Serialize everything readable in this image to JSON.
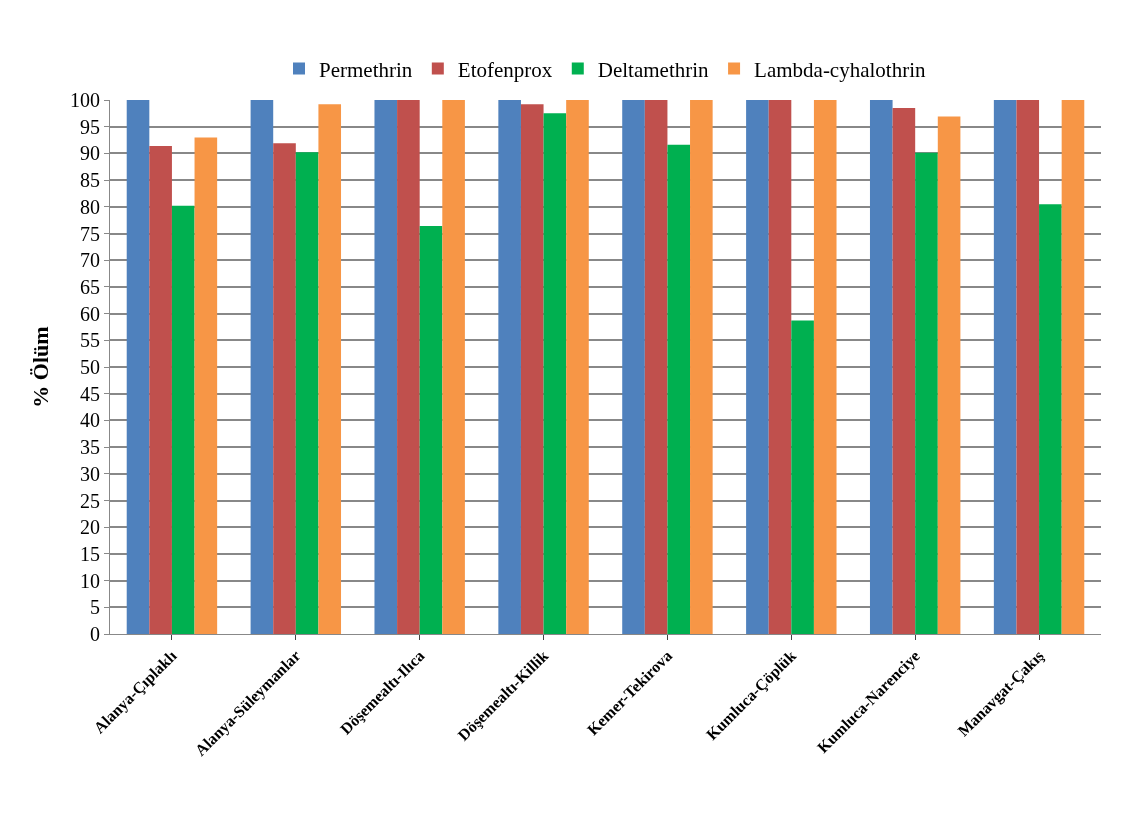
{
  "chart_data": {
    "type": "bar",
    "ylabel": "% Ölüm",
    "categories": [
      "Alanya-Çıplaklı",
      "Alanya-Süleymanlar",
      "Döşemealtı-Ilıca",
      "Döşemealtı-Killik",
      "Kemer-Tekirova",
      "Kumluca-Çöplük",
      "Kumluca-Narenciye",
      "Manavgat-Çakış"
    ],
    "series": [
      {
        "name": "Permethrin",
        "color": "#4f81bd",
        "values": [
          100,
          100,
          100,
          100,
          100,
          100,
          100,
          100
        ]
      },
      {
        "name": "Etofenprox",
        "color": "#c0504d",
        "values": [
          91.4,
          91.9,
          100,
          99.2,
          100,
          100,
          98.5,
          100
        ]
      },
      {
        "name": "Deltamethrin",
        "color": "#00b050",
        "values": [
          80.2,
          90.2,
          76.4,
          97.5,
          91.6,
          58.7,
          90.1,
          80.5
        ]
      },
      {
        "name": "Lambda-cyhalothrin",
        "color": "#f79646",
        "values": [
          93.0,
          99.2,
          100,
          100,
          100,
          100,
          96.9,
          100
        ]
      }
    ],
    "ylim": [
      0,
      100
    ],
    "yticks": [
      0,
      5,
      10,
      15,
      20,
      25,
      30,
      35,
      40,
      45,
      50,
      55,
      60,
      65,
      70,
      75,
      80,
      85,
      90,
      95,
      100
    ],
    "grid": "y",
    "legend": "top"
  }
}
